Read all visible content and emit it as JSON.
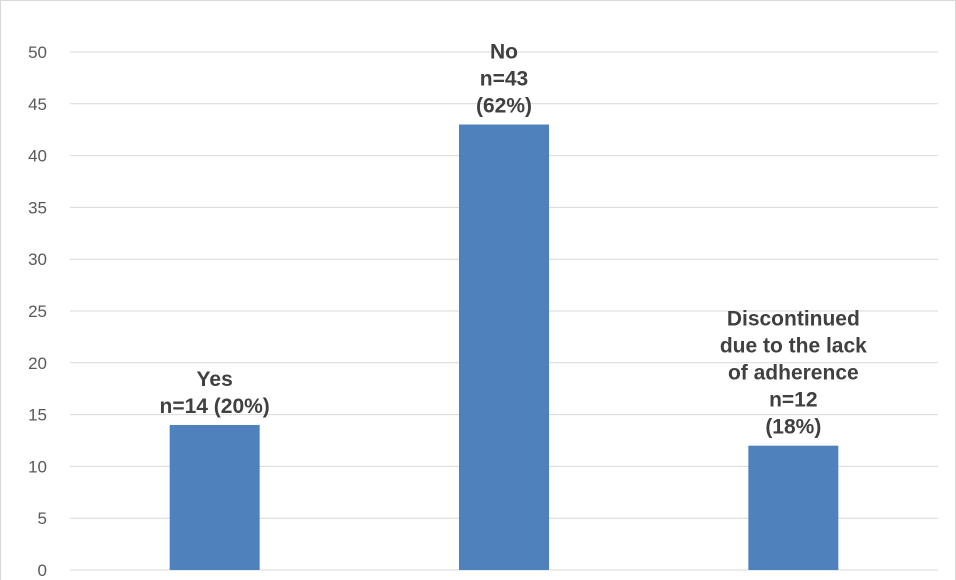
{
  "chart_data": {
    "type": "bar",
    "categories": [
      "Yes",
      "No",
      "Discontinued due to the lack of adherence"
    ],
    "values": [
      14,
      43,
      12
    ],
    "data_labels": [
      [
        "Yes",
        "n=14 (20%)"
      ],
      [
        "No",
        "n=43",
        "(62%)"
      ],
      [
        "Discontinued",
        "due to the lack",
        "of adherence",
        "n=12",
        "(18%)"
      ]
    ],
    "title": "",
    "xlabel": "",
    "ylabel": "",
    "ylim": [
      0,
      50
    ],
    "yticks": [
      0,
      5,
      10,
      15,
      20,
      25,
      30,
      35,
      40,
      45,
      50
    ],
    "grid": true,
    "legend": "none",
    "colors": {
      "bar": "#4f81bd",
      "grid": "#d9d9d9",
      "tick_text": "#595959",
      "label_text": "#404040"
    }
  }
}
